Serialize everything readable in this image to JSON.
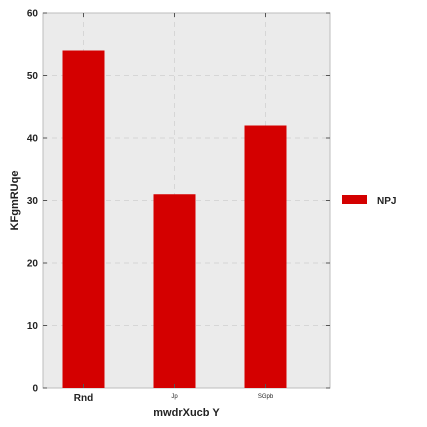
{
  "chart_data": {
    "type": "bar",
    "title": "",
    "xlabel": "mwdrXucb Y",
    "ylabel": "KFgmRUqe",
    "categories": [
      "Rnd",
      "Jp",
      "SGpb"
    ],
    "series": [
      {
        "name": "NPJ",
        "values": [
          54,
          31,
          42
        ],
        "color": "#d40000"
      }
    ],
    "ylim": [
      0,
      60
    ],
    "yticks": [
      0,
      10,
      20,
      30,
      40,
      50,
      60
    ],
    "grid": true,
    "legend_position": "right"
  },
  "colors": {
    "plot_background": "#ebebeb",
    "grid": "#d6d6d6",
    "bar": "#d40000"
  }
}
